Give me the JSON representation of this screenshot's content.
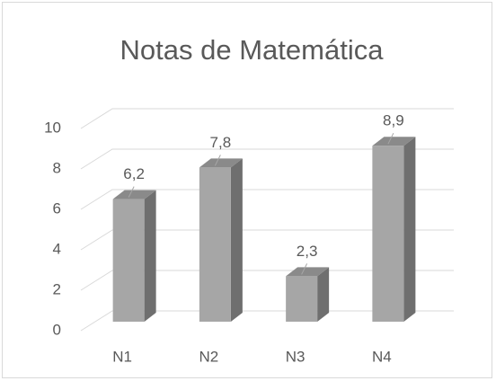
{
  "chart_data": {
    "type": "bar3d",
    "title": "Notas de Matemática",
    "categories": [
      "N1",
      "N2",
      "N3",
      "N4"
    ],
    "values": [
      6.2,
      7.8,
      2.3,
      8.9
    ],
    "value_labels": [
      "6,2",
      "7,8",
      "2,3",
      "8,9"
    ],
    "color": "#a6a6a6",
    "ylim": [
      0,
      10
    ],
    "yticks": [
      0,
      2,
      4,
      6,
      8,
      10
    ],
    "grid": true
  }
}
